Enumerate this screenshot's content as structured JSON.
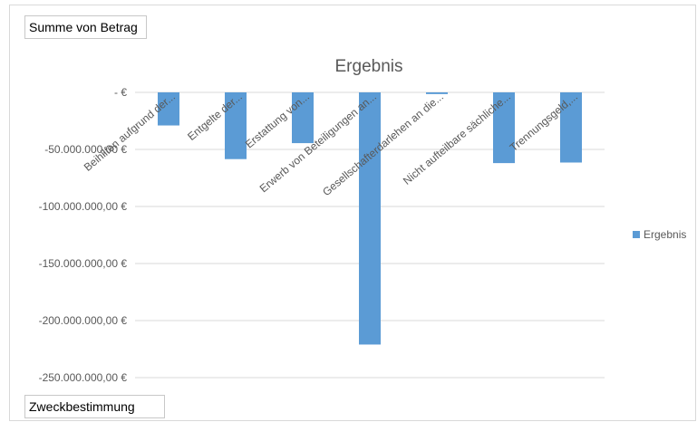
{
  "pivot": {
    "value_field": "Summe von Betrag",
    "axis_field": "Zweckbestimmung"
  },
  "colors": {
    "bar": "#5b9bd5",
    "grid": "#d9d9d9",
    "text": "#595959"
  },
  "chart_data": {
    "type": "bar",
    "title": "Ergebnis",
    "xlabel": "",
    "ylabel": "",
    "ylim": [
      -250000000,
      0
    ],
    "y_ticks": [
      0,
      -50000000,
      -100000000,
      -150000000,
      -200000000,
      -250000000
    ],
    "y_tick_labels": [
      "-   €",
      "-50.000.000,00 €",
      "-100.000.000,00 €",
      "-150.000.000,00 €",
      "-200.000.000,00 €",
      "-250.000.000,00 €"
    ],
    "grid": true,
    "legend_position": "right",
    "categories": [
      "Beihilfen aufgrund der...",
      "Entgelte der...",
      "Erstattung von...",
      "Erwerb von Beteiligungen an...",
      "Gesellschafterdarlehen an die...",
      "Nicht aufteilbare sächliche...",
      "Trennungsgeld,..."
    ],
    "series": [
      {
        "name": "Ergebnis",
        "values": [
          -29000000,
          -58500000,
          -44500000,
          -221000000,
          -1500000,
          -62000000,
          -61500000
        ]
      }
    ]
  }
}
